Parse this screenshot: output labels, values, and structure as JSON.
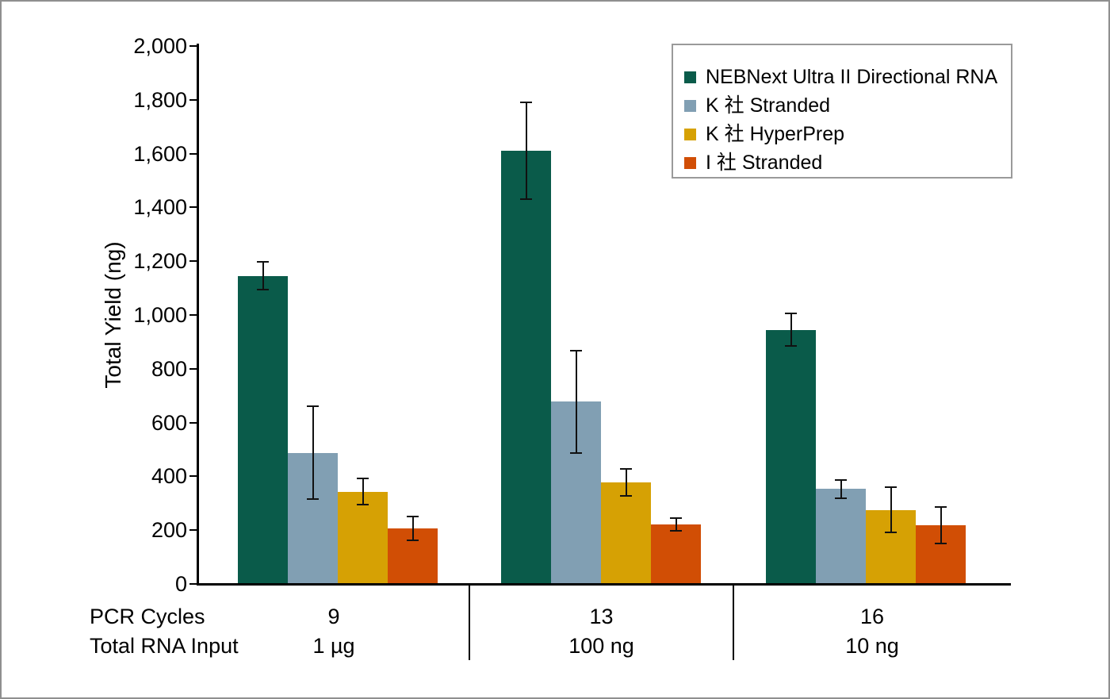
{
  "frame": {
    "border_color": "#8F8F8F",
    "background": "#FFFFFF"
  },
  "chart_data": {
    "type": "bar",
    "title": "",
    "ylabel": "Total Yield (ng)",
    "value_unit": "ng",
    "ylim": [
      0,
      2000
    ],
    "ytick_step": 200,
    "ytick_labels": [
      "0",
      "200",
      "400",
      "600",
      "800",
      "1,000",
      "1,200",
      "1,400",
      "1,600",
      "1,800",
      "2,000"
    ],
    "grid": false,
    "legend_position": "top-right",
    "row_labels": {
      "pcr_cycles": "PCR Cycles",
      "total_rna_input": "Total RNA Input"
    },
    "categories": [
      {
        "pcr_cycles": "9",
        "total_rna_input": "1 µg"
      },
      {
        "pcr_cycles": "13",
        "total_rna_input": "100 ng"
      },
      {
        "pcr_cycles": "16",
        "total_rna_input": "10 ng"
      }
    ],
    "series": [
      {
        "name": "NEBNext Ultra II Directional RNA",
        "color": "#0A5B4A",
        "values": [
          1145,
          1610,
          945
        ],
        "errors": [
          52,
          180,
          60
        ]
      },
      {
        "name": "K 社 Stranded",
        "color": "#819FB3",
        "values": [
          488,
          678,
          353
        ],
        "errors": [
          172,
          190,
          33
        ]
      },
      {
        "name": "K 社 HyperPrep",
        "color": "#D6A104",
        "values": [
          343,
          378,
          275
        ],
        "errors": [
          48,
          50,
          84
        ]
      },
      {
        "name": "I 社 Stranded",
        "color": "#D14E05",
        "values": [
          207,
          222,
          217
        ],
        "errors": [
          44,
          24,
          68
        ]
      }
    ],
    "axis_color": "#000000",
    "error_bar_color": "#111111"
  }
}
